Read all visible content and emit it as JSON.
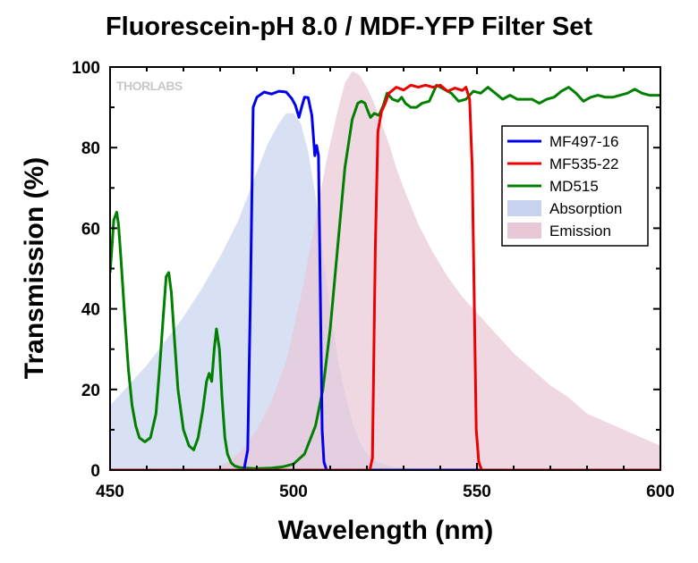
{
  "chart_data": {
    "type": "line",
    "title": "Fluorescein-pH 8.0 / MDF-YFP Filter Set",
    "xlabel": "Wavelength (nm)",
    "ylabel": "Transmission (%)",
    "xlim": [
      450,
      600
    ],
    "ylim": [
      0,
      100
    ],
    "xticks": [
      450,
      500,
      550,
      600
    ],
    "yticks": [
      0,
      20,
      40,
      60,
      80,
      100
    ],
    "grid": false,
    "legend_position": "right",
    "watermark": "THORLABS",
    "series": [
      {
        "name": "MF497-16",
        "kind": "line",
        "color": "#0000ee",
        "x": [
          450,
          486.5,
          487.5,
          488.3,
          489,
          490,
          492,
          494,
          496,
          498,
          499.5,
          500.5,
          501.5,
          502.2,
          503,
          504,
          505,
          505.8,
          506.3,
          506.8,
          507.3,
          507.8,
          508.3,
          509,
          600
        ],
        "y": [
          0,
          0,
          5,
          45,
          90,
          92.5,
          93.8,
          93.3,
          94,
          93.8,
          92.2,
          90.5,
          87.5,
          90,
          92.5,
          92.4,
          88,
          78,
          80.5,
          78,
          45,
          10,
          2,
          0,
          0
        ]
      },
      {
        "name": "MF535-22",
        "kind": "line",
        "color": "#ee0000",
        "x": [
          450,
          520.8,
          521.5,
          522.3,
          523,
          524,
          525,
          526,
          528,
          530,
          532,
          534,
          536,
          538,
          540,
          542,
          544,
          546,
          547,
          548,
          548.7,
          549.3,
          549.8,
          550.5,
          551.3,
          600
        ],
        "y": [
          0,
          0,
          3,
          55,
          84,
          89,
          91,
          93.5,
          95,
          94.3,
          95.5,
          95,
          95.5,
          95,
          95.5,
          94,
          94.8,
          94.2,
          95,
          92,
          75,
          40,
          10,
          2,
          0,
          0
        ]
      },
      {
        "name": "MD515",
        "kind": "line",
        "color": "#008000",
        "x": [
          450,
          450.5,
          451,
          451.8,
          452.3,
          453,
          454,
          455,
          456,
          457,
          458,
          459.5,
          461,
          462.5,
          463.5,
          464.5,
          465.3,
          466,
          466.7,
          467.5,
          468.5,
          470,
          471.5,
          472.8,
          474,
          475.3,
          476.3,
          477,
          477.7,
          478.4,
          479,
          479.8,
          480.5,
          481.3,
          482,
          483,
          484,
          485.5,
          487,
          489,
          491,
          494,
          497,
          500,
          503,
          506,
          508,
          510,
          512,
          514,
          516,
          517.5,
          518.5,
          519.5,
          520.3,
          521,
          522,
          523.3,
          524.5,
          525.5,
          527,
          528.5,
          529.5,
          530.5,
          532,
          533.5,
          535,
          537,
          539,
          541,
          543,
          545,
          547,
          549,
          551,
          553,
          555,
          557,
          559,
          561,
          563,
          565,
          567,
          569,
          571,
          573,
          575,
          577,
          579,
          581,
          583,
          585,
          587,
          589,
          591,
          593,
          595,
          597,
          600
        ],
        "y": [
          49,
          55,
          62,
          64,
          61,
          52,
          38,
          25,
          16,
          11,
          8,
          7,
          8,
          14,
          25,
          38,
          48,
          49,
          44,
          33,
          20,
          10,
          6,
          5,
          8,
          15,
          22,
          24,
          22,
          30,
          35,
          30,
          18,
          8,
          4,
          1.8,
          1,
          0.6,
          0.5,
          0.4,
          0.4,
          0.5,
          0.8,
          1.5,
          4,
          11,
          20,
          35,
          55,
          75,
          87,
          91,
          91.5,
          91,
          89,
          87.5,
          88.5,
          88,
          90.5,
          93.5,
          92,
          91.5,
          92.5,
          91,
          90,
          90,
          91,
          91.5,
          95.5,
          94.5,
          93.5,
          91.5,
          92,
          94,
          93.5,
          95,
          93.5,
          92,
          93,
          92,
          92,
          92,
          91,
          92,
          92.5,
          94,
          95,
          93.5,
          91.5,
          92.5,
          93,
          92.5,
          92.5,
          93,
          93.5,
          94.5,
          93.5,
          93,
          93
        ]
      },
      {
        "name": "Absorption",
        "kind": "area",
        "color": "#c7d3ee",
        "x": [
          450,
          455,
          460,
          465,
          470,
          475,
          480,
          485,
          490,
          493,
          496,
          498,
          500,
          502,
          504,
          506,
          508,
          510,
          512,
          514,
          516,
          518,
          520,
          523,
          526,
          530,
          535,
          540
        ],
        "y": [
          16,
          21,
          26,
          32,
          38,
          45,
          53,
          62,
          74,
          81,
          86,
          88.5,
          88.5,
          86,
          79,
          68,
          54,
          40,
          28,
          19,
          12,
          7,
          4,
          2,
          1,
          0.5,
          0.2,
          0
        ]
      },
      {
        "name": "Emission",
        "kind": "area",
        "color": "#e8c8d6",
        "x": [
          478,
          482,
          486,
          490,
          494,
          498,
          502,
          506,
          509,
          512,
          514,
          516,
          518,
          520,
          522,
          524,
          526,
          528,
          530,
          534,
          538,
          542,
          546,
          550,
          555,
          560,
          565,
          570,
          575,
          580,
          585,
          590,
          595,
          600
        ],
        "y": [
          0,
          2,
          5,
          10,
          17,
          27,
          43,
          62,
          77,
          89,
          96,
          99,
          98,
          95,
          91,
          86,
          81,
          75,
          70,
          61,
          54,
          48,
          43,
          39,
          34,
          29,
          25,
          21,
          18,
          14,
          12,
          10,
          8,
          6
        ]
      }
    ]
  }
}
